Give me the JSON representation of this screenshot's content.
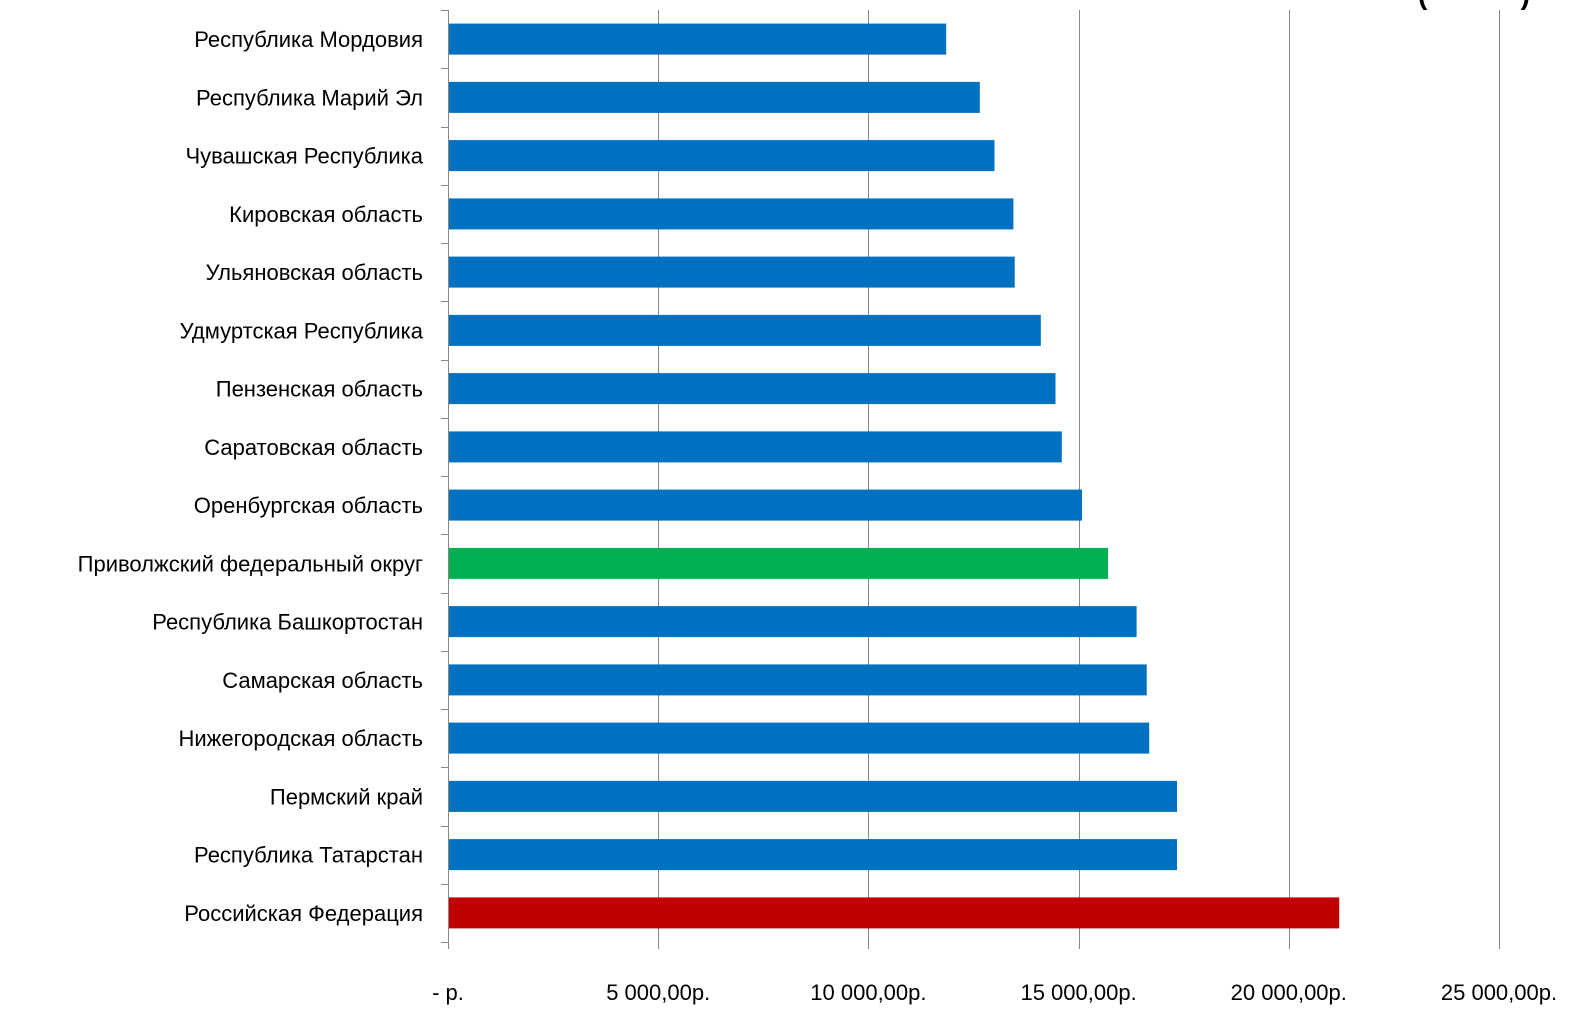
{
  "chart_data": {
    "type": "bar",
    "orientation": "horizontal",
    "categories": [
      "Республика Мордовия",
      "Республика Марий Эл",
      "Чувашская Республика",
      "Кировская область",
      "Ульяновская область",
      "Удмуртская Республика",
      "Пензенская область",
      "Саратовская область",
      "Оренбургская область",
      "Приволжский федеральный округ",
      "Республика Башкортостан",
      "Самарская область",
      "Нижегородская область",
      "Пермский край",
      "Республика Татарстан",
      "Российская Федерация"
    ],
    "values": [
      11850,
      12650,
      13000,
      13450,
      13480,
      14100,
      14450,
      14600,
      15080,
      15700,
      16380,
      16620,
      16680,
      17340,
      17340,
      21200
    ],
    "bar_colors": [
      "#0070c0",
      "#0070c0",
      "#0070c0",
      "#0070c0",
      "#0070c0",
      "#0070c0",
      "#0070c0",
      "#0070c0",
      "#0070c0",
      "#00b050",
      "#0070c0",
      "#0070c0",
      "#0070c0",
      "#0070c0",
      "#0070c0",
      "#c00000"
    ],
    "xlim": [
      0,
      25000
    ],
    "x_ticks": [
      0,
      5000,
      10000,
      15000,
      20000,
      25000
    ],
    "x_tick_labels": [
      "-   р.",
      "5 000,00р.",
      "10 000,00р.",
      "15 000,00р.",
      "20 000,00р.",
      "25 000,00р."
    ],
    "grid": "vertical",
    "legend": "none",
    "corner_text": "(            )"
  }
}
